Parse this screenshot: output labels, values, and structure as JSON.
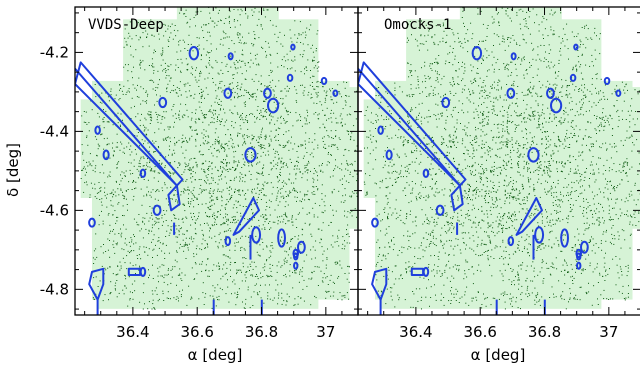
{
  "chart_data": {
    "type": "scatter",
    "x_tick_labels": [
      "36.4",
      "36.6",
      "36.8",
      "37"
    ],
    "y_tick_labels": [
      "-4.2",
      "-4.4",
      "-4.6",
      "-4.8"
    ],
    "xlim": [
      36.22,
      37.1
    ],
    "ylim": [
      -4.865,
      -4.085
    ],
    "xlabel": "α [deg]",
    "ylabel": "δ [deg]",
    "grid": false,
    "colors": {
      "points": "#0d5a12",
      "coverage": "#d6f3d6",
      "mask": "#1f3fdc"
    },
    "panels": [
      {
        "title": "VVDS-Deep",
        "xlabel": "α [deg]",
        "ylabel": "δ [deg]"
      },
      {
        "title": "Omocks-1",
        "xlabel": "α [deg]",
        "ylabel": ""
      }
    ]
  }
}
